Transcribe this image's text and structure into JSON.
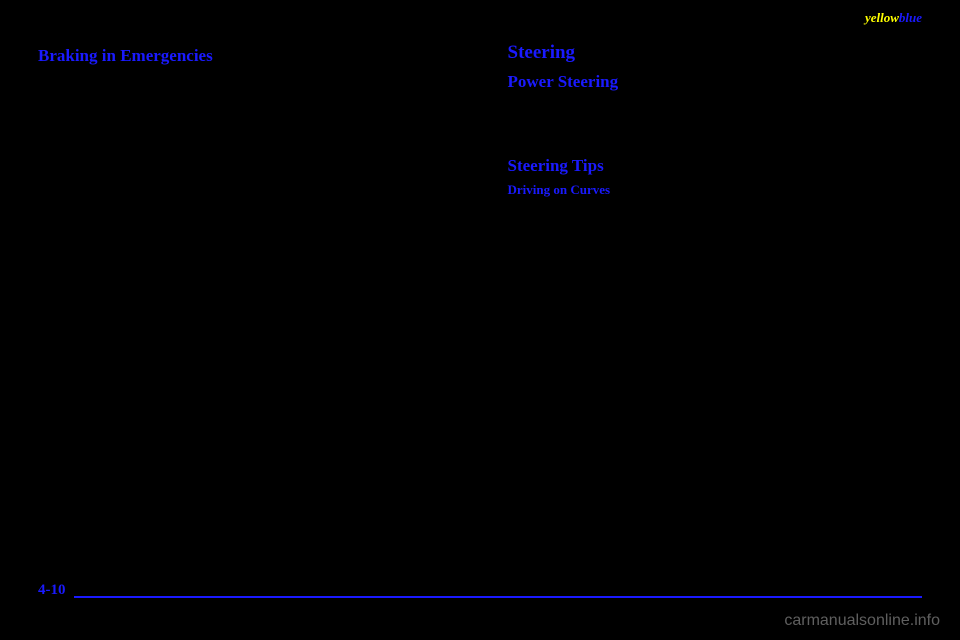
{
  "header": {
    "yellow": "yellow",
    "blue": "blue"
  },
  "left": {
    "h1": "Braking in Emergencies"
  },
  "right": {
    "h1": "Steering",
    "h2a": "Power Steering",
    "h2b": "Steering Tips",
    "h3": "Driving on Curves"
  },
  "footer": {
    "page": "4-10"
  },
  "watermark": "carmanualsonline.info",
  "colors": {
    "background": "#000000",
    "heading": "#1a1aff",
    "yellow": "#ffff00",
    "watermark": "#888888"
  }
}
